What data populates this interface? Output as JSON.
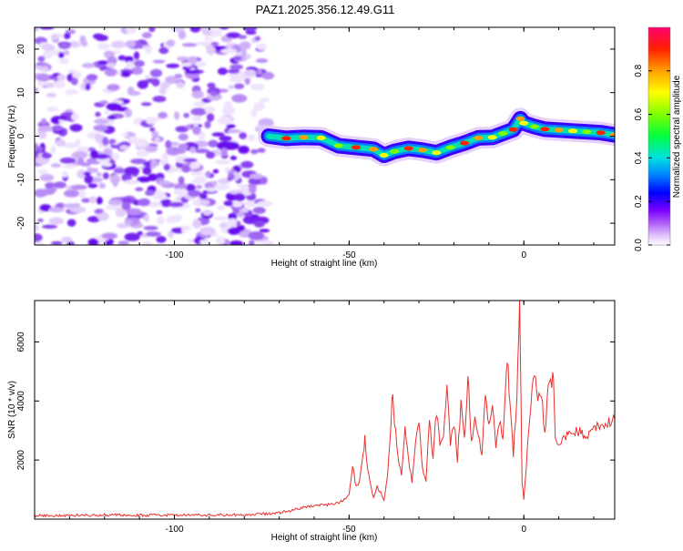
{
  "figure_title": "PAZ1.2025.356.12.49.G11",
  "colors": {
    "snr_line": "#e8302f",
    "spectro_background": "#ffffff",
    "colormap": [
      "#ffffff",
      "#e6d8fb",
      "#b48cf5",
      "#7a2bf0",
      "#3a00ff",
      "#0010ff",
      "#0080ff",
      "#00e0e0",
      "#00ff40",
      "#80ff00",
      "#ffff00",
      "#ffa000",
      "#ff2000",
      "#ff0060"
    ]
  },
  "chart_data": [
    {
      "type": "heatmap",
      "title": "",
      "xlabel": "Height of straight line (km)",
      "ylabel": "Frequency (Hz)",
      "xlim": [
        -140,
        26
      ],
      "ylim": [
        -25,
        25
      ],
      "x_ticks": [
        -100,
        -50,
        0
      ],
      "y_ticks": [
        -20,
        -10,
        0,
        10,
        20
      ],
      "noise_region_x": [
        -140,
        -73
      ],
      "signal_start_x": -73,
      "ridge": {
        "x": [
          -73,
          -68,
          -63,
          -58,
          -53,
          -48,
          -43,
          -40,
          -37,
          -33,
          -29,
          -25,
          -21,
          -17,
          -13,
          -9,
          -6,
          -3,
          -1,
          0,
          3,
          6,
          10,
          14,
          18,
          22,
          26
        ],
        "freq": [
          0,
          -0.5,
          -0.3,
          -0.4,
          -2.2,
          -2.6,
          -3.0,
          -4.4,
          -3.5,
          -2.8,
          -3.2,
          -3.8,
          -2.6,
          -1.6,
          -0.4,
          -0.3,
          0.6,
          1.5,
          4.0,
          3.0,
          2.2,
          1.6,
          1.4,
          1.2,
          1.0,
          0.8,
          0.3
        ]
      },
      "colorbar": {
        "label": "Normalized spectral amplitude",
        "range": [
          0.0,
          1.0
        ],
        "ticks": [
          0.0,
          0.2,
          0.4,
          0.6,
          0.8
        ],
        "tick_labels": [
          "0.0",
          "0.2",
          "0.4",
          "0.6",
          "0.8"
        ]
      }
    },
    {
      "type": "line",
      "title": "",
      "xlabel": "Height of straight line (km)",
      "ylabel": "SNR (10 * v/v)",
      "xlim": [
        -140,
        26
      ],
      "ylim": [
        0,
        7400
      ],
      "x_ticks": [
        -100,
        -50,
        0
      ],
      "y_ticks": [
        2000,
        4000,
        6000
      ],
      "series": [
        {
          "name": "SNR",
          "x": [
            -140,
            -120,
            -100,
            -80,
            -70,
            -65,
            -60,
            -55,
            -52,
            -50,
            -49,
            -48,
            -47,
            -46,
            -45.5,
            -45,
            -44,
            -43,
            -42,
            -41,
            -40,
            -39,
            -38,
            -37.5,
            -37,
            -36,
            -35,
            -34,
            -33,
            -32,
            -31,
            -30,
            -29,
            -28,
            -27,
            -26,
            -25,
            -24,
            -23,
            -22,
            -21,
            -20,
            -19,
            -18,
            -17,
            -16,
            -15.5,
            -15,
            -14,
            -13,
            -12,
            -11,
            -10,
            -9,
            -8,
            -7,
            -6,
            -5,
            -4.5,
            -4,
            -3,
            -2,
            -1.2,
            -0.8,
            -0.5,
            0,
            1,
            2,
            3,
            4,
            5,
            6,
            7,
            8,
            8.5,
            9,
            10,
            11,
            12,
            14,
            16,
            18,
            20,
            22,
            24,
            26
          ],
          "values": [
            120,
            140,
            130,
            150,
            200,
            350,
            450,
            500,
            600,
            800,
            1800,
            1100,
            1300,
            2200,
            2700,
            2000,
            1200,
            700,
            1100,
            900,
            600,
            1500,
            3300,
            4400,
            3400,
            2000,
            1500,
            3000,
            2000,
            1300,
            2600,
            3200,
            1700,
            1200,
            3400,
            2000,
            3700,
            2400,
            2800,
            4300,
            2600,
            3300,
            2000,
            4000,
            2800,
            4800,
            3800,
            2500,
            3500,
            2700,
            2300,
            4400,
            3200,
            3900,
            2500,
            3400,
            2600,
            5000,
            5200,
            3800,
            2200,
            4200,
            7300,
            3900,
            1300,
            700,
            2300,
            3900,
            5000,
            4200,
            4300,
            2900,
            4400,
            4600,
            4800,
            2700,
            2400,
            2600,
            2800,
            2900,
            3000,
            2700,
            3100,
            3200,
            3300,
            3400
          ]
        }
      ]
    }
  ]
}
